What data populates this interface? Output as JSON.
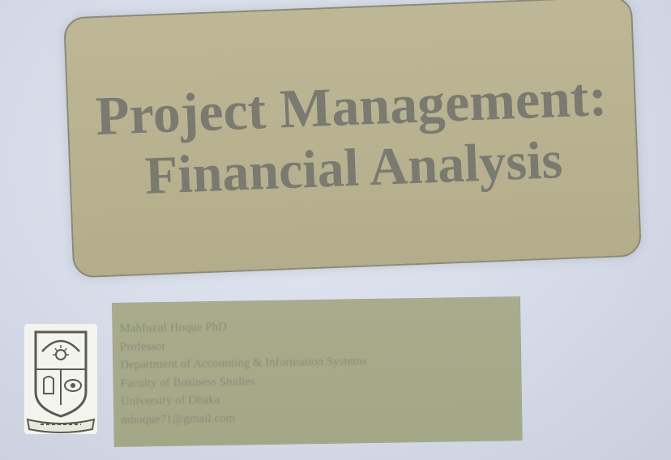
{
  "slide": {
    "title_line1": "Project Management:",
    "title_line2": "Financial Analysis",
    "info_lines": [
      "Mahfuzul Hoque PhD",
      "Professor",
      "Department of Accounting & Information Systems",
      "Faculty of Business Studies",
      "University of Dhaka",
      "mhoque71@gmail.com"
    ],
    "logo_icon": "university-of-dhaka-seal"
  },
  "colors": {
    "background": "#d5dbe8",
    "title_box_fill": "#b7b190",
    "title_text": "#7a7a70",
    "info_box_fill": "#a6a988",
    "info_text": "#888c78"
  }
}
